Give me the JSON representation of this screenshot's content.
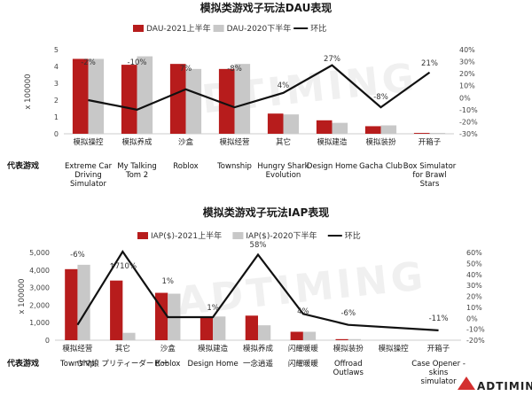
{
  "brand": "ADTIMING",
  "watermark": "ADTIMING",
  "chart_data": [
    {
      "type": "bar",
      "title": "模拟类游戏子玩法DAU表现",
      "ylabel": "x 100000",
      "ylim": [
        0,
        5
      ],
      "y_ticks": [
        "0",
        "1",
        "2",
        "3",
        "4",
        "5"
      ],
      "y2lim": [
        -30,
        40
      ],
      "y2_ticks": [
        "-30%",
        "-20%",
        "-10%",
        "0%",
        "10%",
        "20%",
        "30%",
        "40%"
      ],
      "row_label": "代表游戏",
      "categories": [
        "模拟操控",
        "模拟养成",
        "沙盒",
        "模拟经营",
        "其它",
        "模拟建造",
        "模拟装扮",
        "开箱子"
      ],
      "games": [
        "Extreme Car Driving Simulator",
        "My Talking Tom 2",
        "Roblox",
        "Township",
        "Hungry Shark Evolution",
        "Design Home",
        "Gacha Club",
        "Box Simulator for Brawl Stars"
      ],
      "series": [
        {
          "name": "DAU-2021上半年",
          "color": "#b71c1c",
          "values": [
            4.45,
            4.1,
            4.15,
            3.85,
            1.2,
            0.8,
            0.45,
            0.05
          ]
        },
        {
          "name": "DAU-2020下半年",
          "color": "#c8c8c8",
          "values": [
            4.45,
            4.6,
            3.85,
            4.15,
            1.15,
            0.65,
            0.5,
            0.05
          ]
        }
      ],
      "line": {
        "name": "环比",
        "color": "#111111",
        "values": [
          -2,
          -10,
          7,
          -8,
          4,
          27,
          -8,
          21
        ]
      },
      "line_labels": [
        "-2%",
        "-10%",
        "7%",
        "-8%",
        "4%",
        "27%",
        "-8%",
        "21%"
      ]
    },
    {
      "type": "bar",
      "title": "模拟类游戏子玩法IAP表现",
      "ylabel": "x 100000",
      "ylim": [
        0,
        5000
      ],
      "y_ticks": [
        "0",
        "1,000",
        "2,000",
        "3,000",
        "4,000",
        "5,000"
      ],
      "y2lim": [
        -20,
        60
      ],
      "y2_ticks": [
        "-20%",
        "-10%",
        "0%",
        "10%",
        "20%",
        "30%",
        "40%",
        "50%",
        "60%"
      ],
      "row_label": "代表游戏",
      "categories": [
        "模拟经营",
        "其它",
        "沙盒",
        "模拟建造",
        "模拟养成",
        "闪耀暖暖",
        "模拟装扮",
        "模拟操控",
        "开箱子"
      ],
      "games": [
        "Township",
        "ウマ娘 プリティーダービー",
        "Roblox",
        "Design Home",
        "一念逍遥",
        "闪耀暖暖",
        "Offroad Outlaws",
        "",
        "Case Opener - skins simulator"
      ],
      "series": [
        {
          "name": "IAP($)-2021上半年",
          "color": "#b71c1c",
          "values": [
            4050,
            3400,
            2700,
            1350,
            1400,
            480,
            60,
            0,
            0
          ]
        },
        {
          "name": "IAP($)-2020下半年",
          "color": "#c8c8c8",
          "values": [
            4300,
            420,
            2650,
            1350,
            850,
            480,
            60,
            0,
            0
          ]
        }
      ],
      "line": {
        "name": "环比",
        "color": "#111111",
        "values": [
          -6,
          710,
          1,
          1,
          58,
          4,
          -6,
          null,
          -11
        ]
      },
      "line_labels": [
        "-6%",
        "↑710%",
        "1%",
        "1%",
        "58%",
        "4%",
        "-6%",
        "",
        "-11%"
      ]
    }
  ]
}
